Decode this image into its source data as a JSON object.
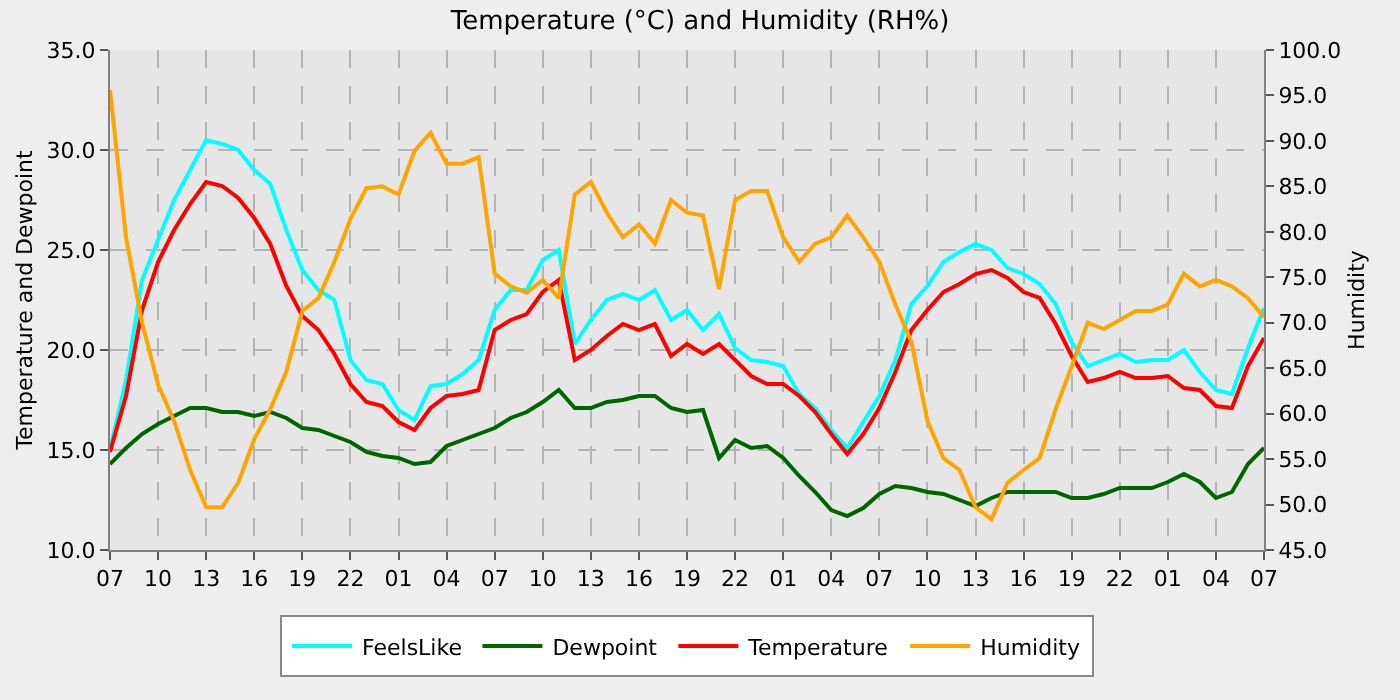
{
  "chart_data": {
    "type": "line",
    "title": "Temperature (°C) and Humidity (RH%)",
    "ylabel": "Temperature and Dewpoint",
    "y2label": "Humidity",
    "categories": [
      "07",
      null,
      null,
      "10",
      null,
      null,
      "13",
      null,
      null,
      "16",
      null,
      null,
      "19",
      null,
      null,
      "22",
      null,
      null,
      "01",
      null,
      null,
      "04",
      null,
      null,
      "07",
      null,
      null,
      "10",
      null,
      null,
      "13",
      null,
      null,
      "16",
      null,
      null,
      "19",
      null,
      null,
      "22",
      null,
      null,
      "01",
      null,
      null,
      "04",
      null,
      null,
      "07",
      null,
      null,
      "10",
      null,
      null,
      "13",
      null,
      null,
      "16",
      null,
      null,
      "19",
      null,
      null,
      "22",
      null,
      null,
      "01",
      null,
      null,
      "04",
      null,
      null,
      "07"
    ],
    "series": [
      {
        "name": "FeelsLike",
        "color": "#00ffff",
        "values": [
          15.0,
          18.5,
          23.5,
          25.5,
          27.5,
          29.0,
          30.5,
          30.3,
          30.0,
          29.0,
          28.3,
          26.0,
          24.0,
          23.0,
          22.5,
          19.5,
          18.5,
          18.3,
          17.0,
          16.5,
          18.2,
          18.3,
          18.8,
          19.5,
          22.0,
          23.0,
          23.0,
          24.5,
          25.0,
          20.3,
          21.5,
          22.5,
          22.8,
          22.5,
          23.0,
          21.5,
          22.0,
          21.0,
          21.8,
          20.1,
          19.5,
          19.4,
          19.2,
          17.8,
          17.1,
          16.0,
          15.1,
          16.4,
          17.7,
          19.5,
          22.3,
          23.2,
          24.4,
          24.9,
          25.3,
          25.0,
          24.1,
          23.8,
          23.3,
          22.3,
          20.4,
          19.2,
          19.5,
          19.8,
          19.4,
          19.5,
          19.5,
          20.0,
          18.9,
          18.0,
          17.8,
          20.1,
          22.1
        ]
      },
      {
        "name": "Dewpoint",
        "color": "#006400",
        "values": [
          14.3,
          15.1,
          15.8,
          16.3,
          16.7,
          17.1,
          17.1,
          16.9,
          16.9,
          16.7,
          16.9,
          16.6,
          16.1,
          16.0,
          15.7,
          15.4,
          14.9,
          14.7,
          14.6,
          14.3,
          14.4,
          15.2,
          15.5,
          15.8,
          16.1,
          16.6,
          16.9,
          17.4,
          18.0,
          17.1,
          17.1,
          17.4,
          17.5,
          17.7,
          17.7,
          17.1,
          16.9,
          17.0,
          14.6,
          15.5,
          15.1,
          15.2,
          14.6,
          13.7,
          12.9,
          12.0,
          11.7,
          12.1,
          12.8,
          13.2,
          13.1,
          12.9,
          12.8,
          12.5,
          12.2,
          12.6,
          12.9,
          12.9,
          12.9,
          12.9,
          12.6,
          12.6,
          12.8,
          13.1,
          13.1,
          13.1,
          13.4,
          13.8,
          13.4,
          12.6,
          12.9,
          14.3,
          15.1
        ]
      },
      {
        "name": "Temperature",
        "color": "#ff0000",
        "values": [
          14.9,
          17.7,
          22.0,
          24.4,
          26.0,
          27.3,
          28.4,
          28.2,
          27.6,
          26.6,
          25.3,
          23.2,
          21.7,
          21.0,
          19.8,
          18.3,
          17.4,
          17.2,
          16.4,
          16.0,
          17.1,
          17.7,
          17.8,
          18.0,
          21.0,
          21.5,
          21.8,
          22.9,
          23.5,
          19.5,
          20.0,
          20.7,
          21.3,
          21.0,
          21.3,
          19.7,
          20.3,
          19.8,
          20.3,
          19.5,
          18.7,
          18.3,
          18.3,
          17.7,
          16.9,
          15.8,
          14.8,
          15.8,
          17.1,
          18.9,
          21.0,
          22.0,
          22.9,
          23.3,
          23.8,
          24.0,
          23.6,
          22.9,
          22.6,
          21.3,
          19.7,
          18.4,
          18.6,
          18.9,
          18.6,
          18.6,
          18.7,
          18.1,
          18.0,
          17.2,
          17.1,
          19.2,
          20.6
        ]
      },
      {
        "name": "Humidity",
        "color": "#ffa500",
        "axis": "y2",
        "values": [
          95.6,
          79.4,
          70.0,
          63.2,
          59.2,
          53.8,
          49.7,
          49.7,
          52.4,
          57.2,
          60.5,
          64.6,
          71.3,
          72.7,
          76.7,
          81.4,
          84.8,
          85.0,
          84.1,
          88.9,
          90.9,
          87.5,
          87.5,
          88.2,
          75.4,
          74.0,
          73.3,
          74.7,
          72.7,
          84.1,
          85.5,
          82.1,
          79.4,
          80.8,
          78.7,
          83.5,
          82.1,
          81.8,
          73.7,
          83.5,
          84.5,
          84.5,
          79.4,
          76.7,
          78.7,
          79.4,
          81.8,
          79.4,
          76.7,
          72.0,
          67.9,
          59.2,
          55.1,
          53.8,
          49.7,
          48.4,
          52.4,
          53.8,
          55.1,
          60.5,
          65.2,
          70.0,
          69.3,
          70.3,
          71.3,
          71.3,
          72.0,
          75.4,
          74.0,
          74.7,
          74.0,
          72.7,
          70.6
        ]
      }
    ],
    "ylim": [
      10,
      35
    ],
    "yticks": [
      {
        "value": 10,
        "label": "10.0"
      },
      {
        "value": 15,
        "label": "15.0"
      },
      {
        "value": 20,
        "label": "20.0"
      },
      {
        "value": 25,
        "label": "25.0"
      },
      {
        "value": 30,
        "label": "30.0"
      },
      {
        "value": 35,
        "label": "35.0"
      }
    ],
    "y2lim": [
      45,
      100
    ],
    "y2ticks": [
      {
        "value": 45,
        "label": "45.0"
      },
      {
        "value": 50,
        "label": "50.0"
      },
      {
        "value": 55,
        "label": "55.0"
      },
      {
        "value": 60,
        "label": "60.0"
      },
      {
        "value": 65,
        "label": "65.0"
      },
      {
        "value": 70,
        "label": "70.0"
      },
      {
        "value": 75,
        "label": "75.0"
      },
      {
        "value": 80,
        "label": "80.0"
      },
      {
        "value": 85,
        "label": "85.0"
      },
      {
        "value": 90,
        "label": "90.0"
      },
      {
        "value": 95,
        "label": "95.0"
      },
      {
        "value": 100,
        "label": "100.0"
      }
    ],
    "grid": true,
    "legend": "bottom",
    "line_style": "solid",
    "marker": "none"
  }
}
